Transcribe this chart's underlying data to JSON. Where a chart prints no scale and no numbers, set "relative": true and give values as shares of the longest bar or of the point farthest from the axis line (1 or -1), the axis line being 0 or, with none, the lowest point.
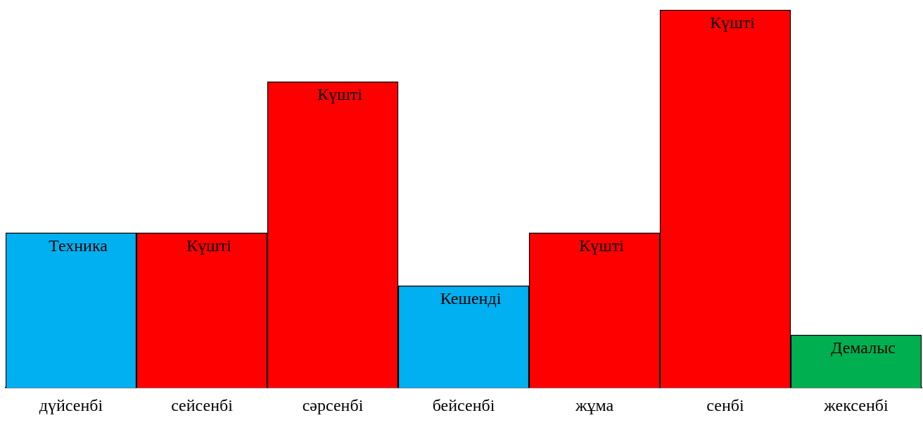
{
  "chart_data": {
    "type": "bar",
    "relative": true,
    "categories": [
      "дүйсенбі",
      "сейсенбі",
      "сәрсенбі",
      "бейсенбі",
      "жұма",
      "сенбі",
      "жексенбі"
    ],
    "values": [
      0.41,
      0.41,
      0.81,
      0.27,
      0.41,
      1,
      0.14
    ],
    "colors": [
      "#00b0f0",
      "#ff0000",
      "#ff0000",
      "#00b0f0",
      "#ff0000",
      "#ff0000",
      "#00b050"
    ],
    "annotations": [
      {
        "text": "Техника",
        "x": "дүйсенбі",
        "y": 0.41
      },
      {
        "text": "Күшті",
        "x": "сейсенбі",
        "y": 0.41
      },
      {
        "text": "Күшті",
        "x": "сәрсенбі",
        "y": 0.81
      },
      {
        "text": "Кешенді",
        "x": "бейсенбі",
        "y": 0.27
      },
      {
        "text": "Күшті",
        "x": "жұма",
        "y": 0.41
      },
      {
        "text": "Күшті",
        "x": "сенбі",
        "y": 1
      },
      {
        "text": "Демалыс",
        "x": "жексенбі",
        "y": 0.14
      }
    ]
  }
}
